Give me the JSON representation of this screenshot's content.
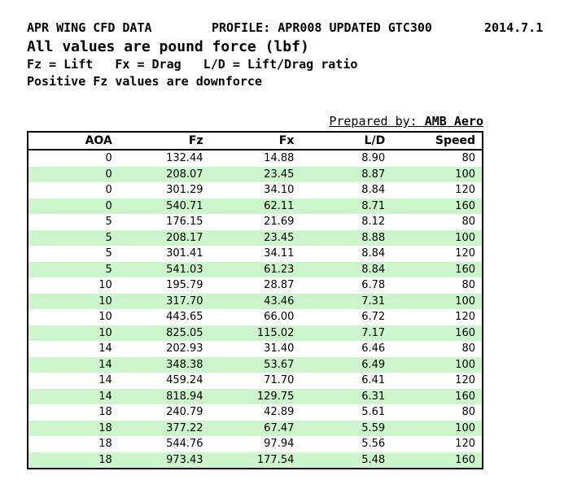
{
  "document": {
    "title_left": "APR WING CFD DATA",
    "title_profile": "PROFILE: APR008 UPDATED GTC300",
    "title_date": "2014.7.1",
    "subtitle": "All values are pound force (lbf)",
    "legend": "Fz = Lift   Fx = Drag   L/D = Lift/Drag ratio",
    "note": "Positive Fz values are downforce",
    "prepared_by_label": "Prepared by: ",
    "prepared_by_value": "AMB Aero"
  },
  "table": {
    "columns": [
      "AOA",
      "Fz",
      "Fx",
      "L/D",
      "Speed"
    ],
    "rows": [
      [
        "0",
        "132.44",
        "14.88",
        "8.90",
        "80"
      ],
      [
        "0",
        "208.07",
        "23.45",
        "8.87",
        "100"
      ],
      [
        "0",
        "301.29",
        "34.10",
        "8.84",
        "120"
      ],
      [
        "0",
        "540.71",
        "62.11",
        "8.71",
        "160"
      ],
      [
        "5",
        "176.15",
        "21.69",
        "8.12",
        "80"
      ],
      [
        "5",
        "208.17",
        "23.45",
        "8.88",
        "100"
      ],
      [
        "5",
        "301.41",
        "34.11",
        "8.84",
        "120"
      ],
      [
        "5",
        "541.03",
        "61.23",
        "8.84",
        "160"
      ],
      [
        "10",
        "195.79",
        "28.87",
        "6.78",
        "80"
      ],
      [
        "10",
        "317.70",
        "43.46",
        "7.31",
        "100"
      ],
      [
        "10",
        "443.65",
        "66.00",
        "6.72",
        "120"
      ],
      [
        "10",
        "825.05",
        "115.02",
        "7.17",
        "160"
      ],
      [
        "14",
        "202.93",
        "31.40",
        "6.46",
        "80"
      ],
      [
        "14",
        "348.38",
        "53.67",
        "6.49",
        "100"
      ],
      [
        "14",
        "459.24",
        "71.70",
        "6.41",
        "120"
      ],
      [
        "14",
        "818.94",
        "129.75",
        "6.31",
        "160"
      ],
      [
        "18",
        "240.79",
        "42.89",
        "5.61",
        "80"
      ],
      [
        "18",
        "377.22",
        "67.47",
        "5.59",
        "100"
      ],
      [
        "18",
        "544.76",
        "97.94",
        "5.56",
        "120"
      ],
      [
        "18",
        "973.43",
        "177.54",
        "5.48",
        "160"
      ]
    ]
  },
  "colors": {
    "row_stripe": "#ccf5cc",
    "border": "#000000",
    "text": "#000000",
    "background": "#ffffff"
  }
}
